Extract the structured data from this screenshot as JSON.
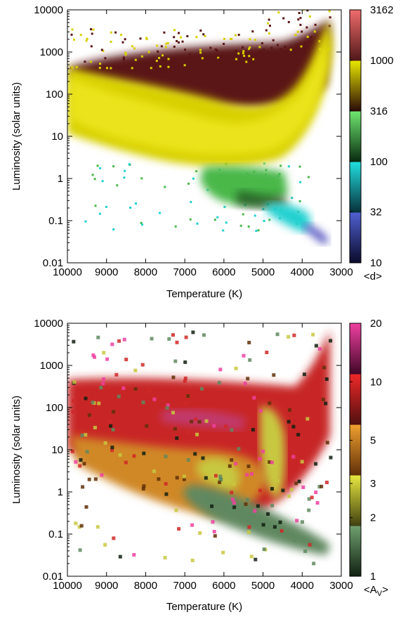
{
  "chart_data": [
    {
      "type": "heatmap",
      "title": "",
      "xlabel": "Temperature (K)",
      "ylabel": "Luminosity (solar units)",
      "x_reversed": true,
      "xlim": [
        10000,
        3000
      ],
      "x_ticks": [
        "10000",
        "9000",
        "8000",
        "7000",
        "6000",
        "5000",
        "4000",
        "3000"
      ],
      "y_scale": "log",
      "ylim": [
        0.01,
        10000
      ],
      "y_ticks": [
        "0.01",
        "0.1",
        "1",
        "10",
        "100",
        "1000",
        "10000"
      ],
      "grid": false,
      "colorbar": {
        "label": "<d>",
        "scale": "log",
        "range": [
          10,
          3162
        ],
        "ticks": [
          "10",
          "32",
          "100",
          "316",
          "1000",
          "3162"
        ],
        "colors": [
          "#0a0a2a",
          "#5060d0",
          "#08303a",
          "#20e0e0",
          "#082a10",
          "#70e870",
          "#2a0808",
          "#e8e800",
          "#501818",
          "#f06c6c"
        ]
      },
      "regions": [
        {
          "description": "main body of giants/subgiants",
          "color": "#d8d000"
        },
        {
          "description": "upper giant branch",
          "color": "#5a1414"
        },
        {
          "description": "main sequence ~1 Lsun",
          "color": "#48b848"
        },
        {
          "description": "cool dwarfs",
          "color": "#20d0d0"
        },
        {
          "description": "faintest dwarfs",
          "color": "#5050c0"
        }
      ]
    },
    {
      "type": "heatmap",
      "title": "",
      "xlabel": "Temperature (K)",
      "ylabel": "Luminosity (solar units)",
      "x_reversed": true,
      "xlim": [
        10000,
        3000
      ],
      "x_ticks": [
        "10000",
        "9000",
        "8000",
        "7000",
        "6000",
        "5000",
        "4000",
        "3000"
      ],
      "y_scale": "log",
      "ylim": [
        0.01,
        10000
      ],
      "y_ticks": [
        "0.01",
        "0.1",
        "1",
        "10",
        "100",
        "1000",
        "10000"
      ],
      "grid": false,
      "colorbar": {
        "label": "<A",
        "label_subscript": "V",
        "label_suffix": ">",
        "scale": "log",
        "range": [
          1,
          20
        ],
        "ticks": [
          "1",
          "2",
          "3",
          "5",
          "10",
          "20"
        ],
        "colors": [
          "#102010",
          "#70a070",
          "#404010",
          "#e8e840",
          "#603008",
          "#f0a030",
          "#501010",
          "#f02828",
          "#400828",
          "#f040a0"
        ]
      },
      "regions": [
        {
          "description": "hot luminous stars",
          "color": "#d02828"
        },
        {
          "description": "mid region",
          "color": "#d08828"
        },
        {
          "description": "red clump / giant branch",
          "color": "#c8c840"
        },
        {
          "description": "main sequence",
          "color": "#608860"
        },
        {
          "description": "bright outliers",
          "color": "#f040a0"
        }
      ]
    }
  ]
}
